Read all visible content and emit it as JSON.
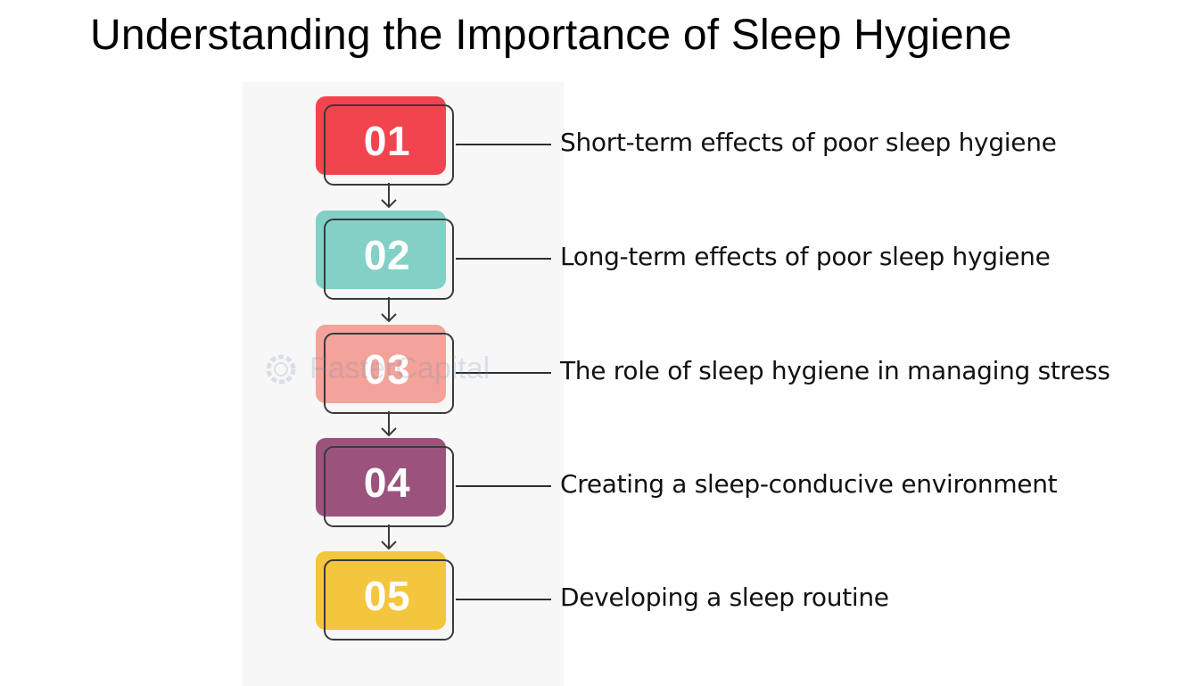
{
  "title": "Understanding the Importance of Sleep Hygiene",
  "steps": [
    {
      "number": "01",
      "label": "Short-term effects of poor sleep hygiene",
      "color": "#f2444e"
    },
    {
      "number": "02",
      "label": "Long-term effects of poor sleep hygiene",
      "color": "#82d0c6"
    },
    {
      "number": "03",
      "label": "The role of sleep hygiene in managing stress",
      "color": "#f4a39a"
    },
    {
      "number": "04",
      "label": "Creating a sleep-conducive environment",
      "color": "#9b537e"
    },
    {
      "number": "05",
      "label": "Developing a sleep routine",
      "color": "#f3c63d"
    }
  ],
  "watermark": {
    "text": "FasterCapital"
  }
}
